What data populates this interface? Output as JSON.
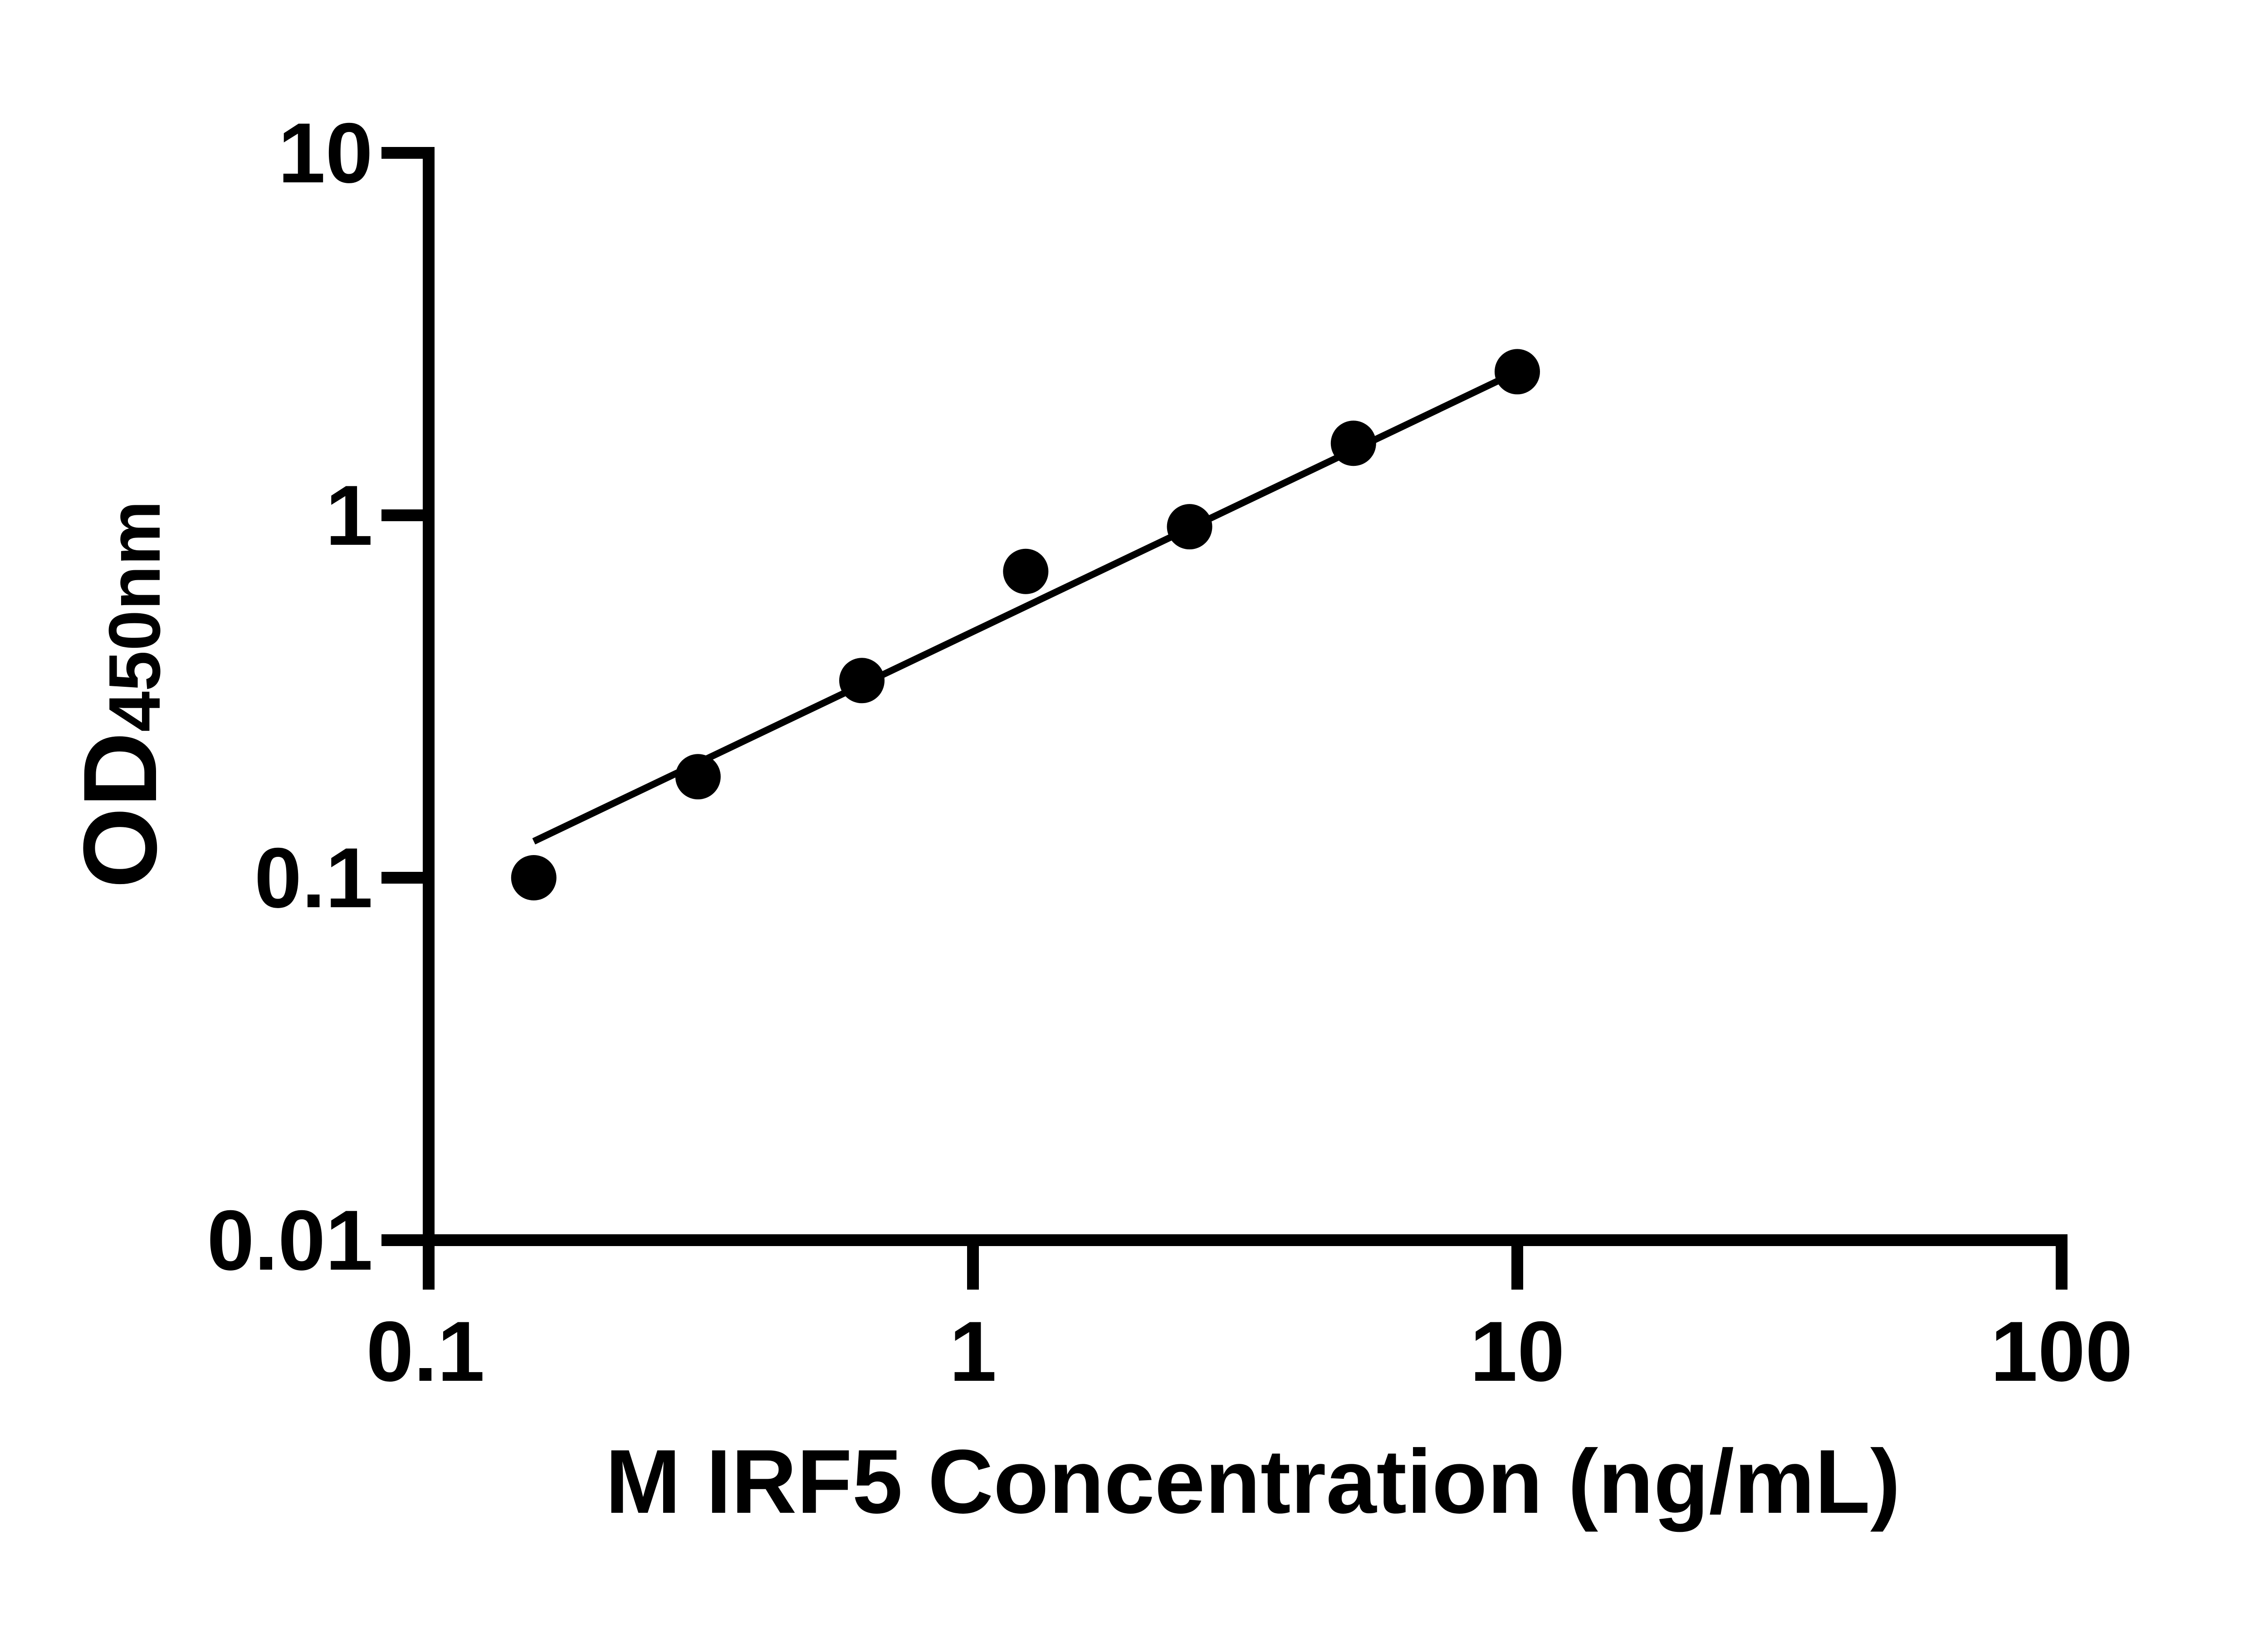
{
  "figure": {
    "background_color": "#ffffff",
    "ink_color": "#000000"
  },
  "chart_data": {
    "type": "scatter",
    "title": "",
    "xlabel": "M IRF5 Concentration (ng/mL)",
    "ylabel_main": "OD",
    "ylabel_sub": "450nm",
    "x_scale": "log",
    "y_scale": "log",
    "xlim": [
      0.1,
      100
    ],
    "ylim": [
      0.01,
      10
    ],
    "x_ticks": [
      0.1,
      1,
      10,
      100
    ],
    "x_tick_labels": [
      "0.1",
      "1",
      "10",
      "100"
    ],
    "y_ticks": [
      10,
      1,
      0.1,
      0.01
    ],
    "y_tick_labels": [
      "10",
      "1",
      "0.1",
      "0.01"
    ],
    "grid": false,
    "legend": false,
    "marker_color": "#000000",
    "line_color": "#000000",
    "series": [
      {
        "name": "standard-curve",
        "marker": "filled-circle",
        "points": [
          {
            "x": 0.156,
            "y": 0.1
          },
          {
            "x": 0.3125,
            "y": 0.19
          },
          {
            "x": 0.625,
            "y": 0.35
          },
          {
            "x": 1.25,
            "y": 0.7
          },
          {
            "x": 2.5,
            "y": 0.93
          },
          {
            "x": 5,
            "y": 1.58
          },
          {
            "x": 10,
            "y": 2.49
          }
        ]
      }
    ],
    "trend_line": {
      "x1": 0.156,
      "y1": 0.126,
      "x2": 10,
      "y2": 2.49
    }
  }
}
